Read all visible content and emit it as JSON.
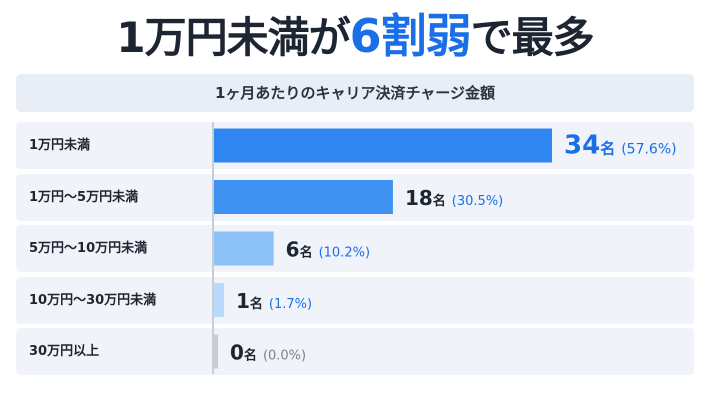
{
  "headline": {
    "prefix": "1万円未満が",
    "highlight": "6割弱",
    "suffix": "で最多"
  },
  "chart_data": {
    "type": "bar",
    "orientation": "horizontal",
    "title": "1ヶ月あたりのキャリア決済チャージ金額",
    "categories": [
      "1万円未満",
      "1万円〜5万円未満",
      "5万円〜10万円未満",
      "10万円〜30万円未満",
      "30万円以上"
    ],
    "values": [
      34,
      18,
      6,
      1,
      0
    ],
    "percents": [
      "57.6%",
      "30.5%",
      "10.2%",
      "1.7%",
      "0.0%"
    ],
    "value_unit": "名",
    "xlim": [
      0,
      34
    ],
    "colors": [
      "#2f86f0",
      "#3f92f2",
      "#8cc2f8",
      "#b8d9fb",
      "#c9ced6"
    ],
    "value_colors": [
      "#1a6fe8",
      "#1e2532",
      "#1e2532",
      "#1e2532",
      "#1e2532"
    ],
    "percent_colors": [
      "#1a6fe8",
      "#1a6fe8",
      "#1a6fe8",
      "#1a6fe8",
      "#7a828f"
    ],
    "grid": false,
    "legend": "none"
  }
}
